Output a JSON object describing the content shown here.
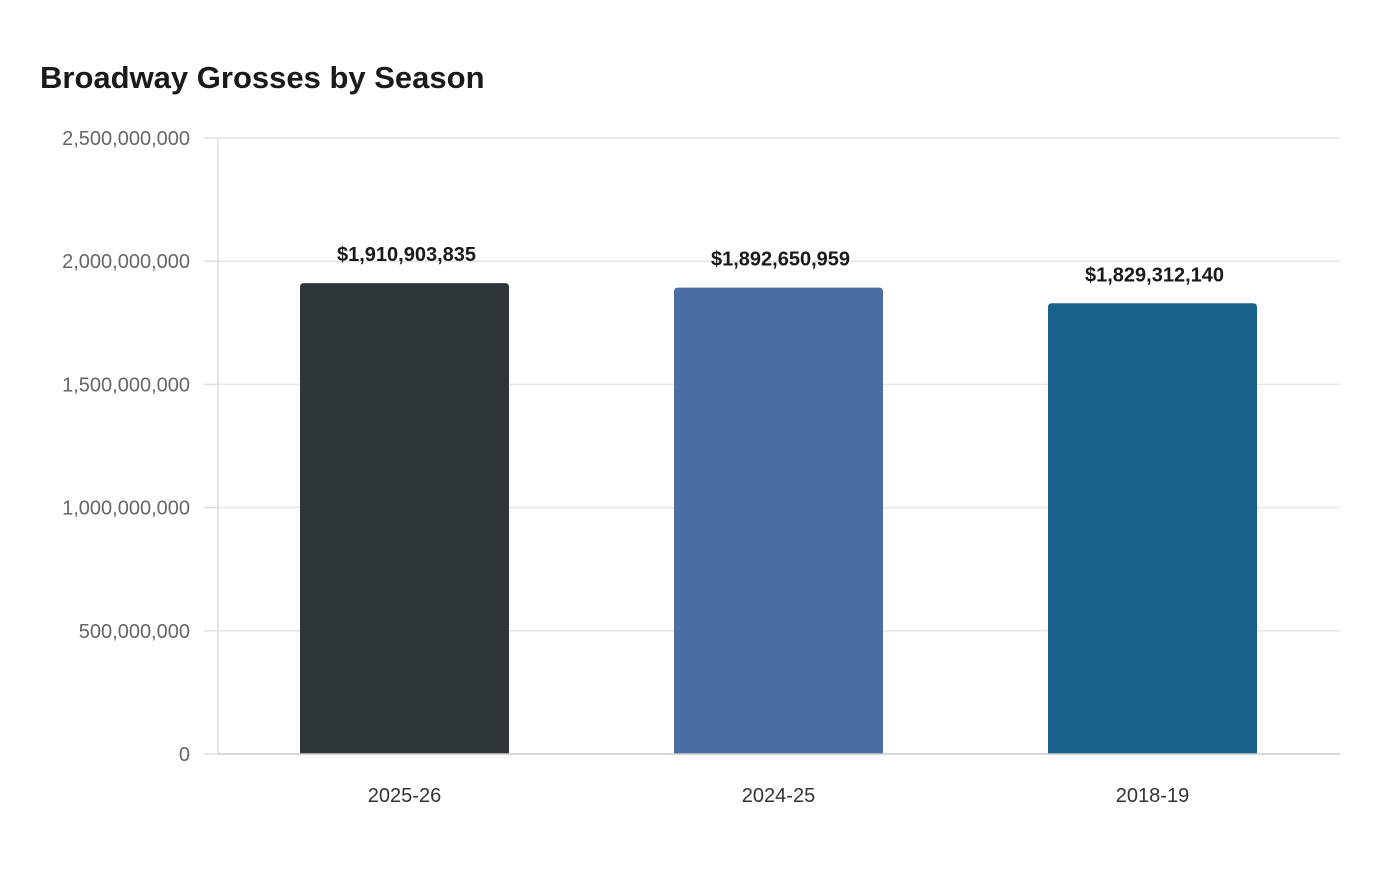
{
  "chart_data": {
    "type": "bar",
    "title": "Broadway Grosses by Season",
    "xlabel": "",
    "ylabel": "",
    "categories": [
      "2025-26",
      "2024-25",
      "2018-19"
    ],
    "values": [
      1910903835,
      1892650959,
      1829312140
    ],
    "value_labels": [
      "$1,910,903,835",
      "$1,892,650,959",
      "$1,829,312,140"
    ],
    "bar_colors": [
      "#2e3538",
      "#4a6ea2",
      "#186189"
    ],
    "ylim": [
      0,
      2500000000
    ],
    "yticks": [
      0,
      500000000,
      1000000000,
      1500000000,
      2000000000,
      2500000000
    ],
    "ytick_labels": [
      "0",
      "500,000,000",
      "1,000,000,000",
      "1,500,000,000",
      "2,000,000,000",
      "2,500,000,000"
    ],
    "grid": true,
    "legend": "none"
  }
}
